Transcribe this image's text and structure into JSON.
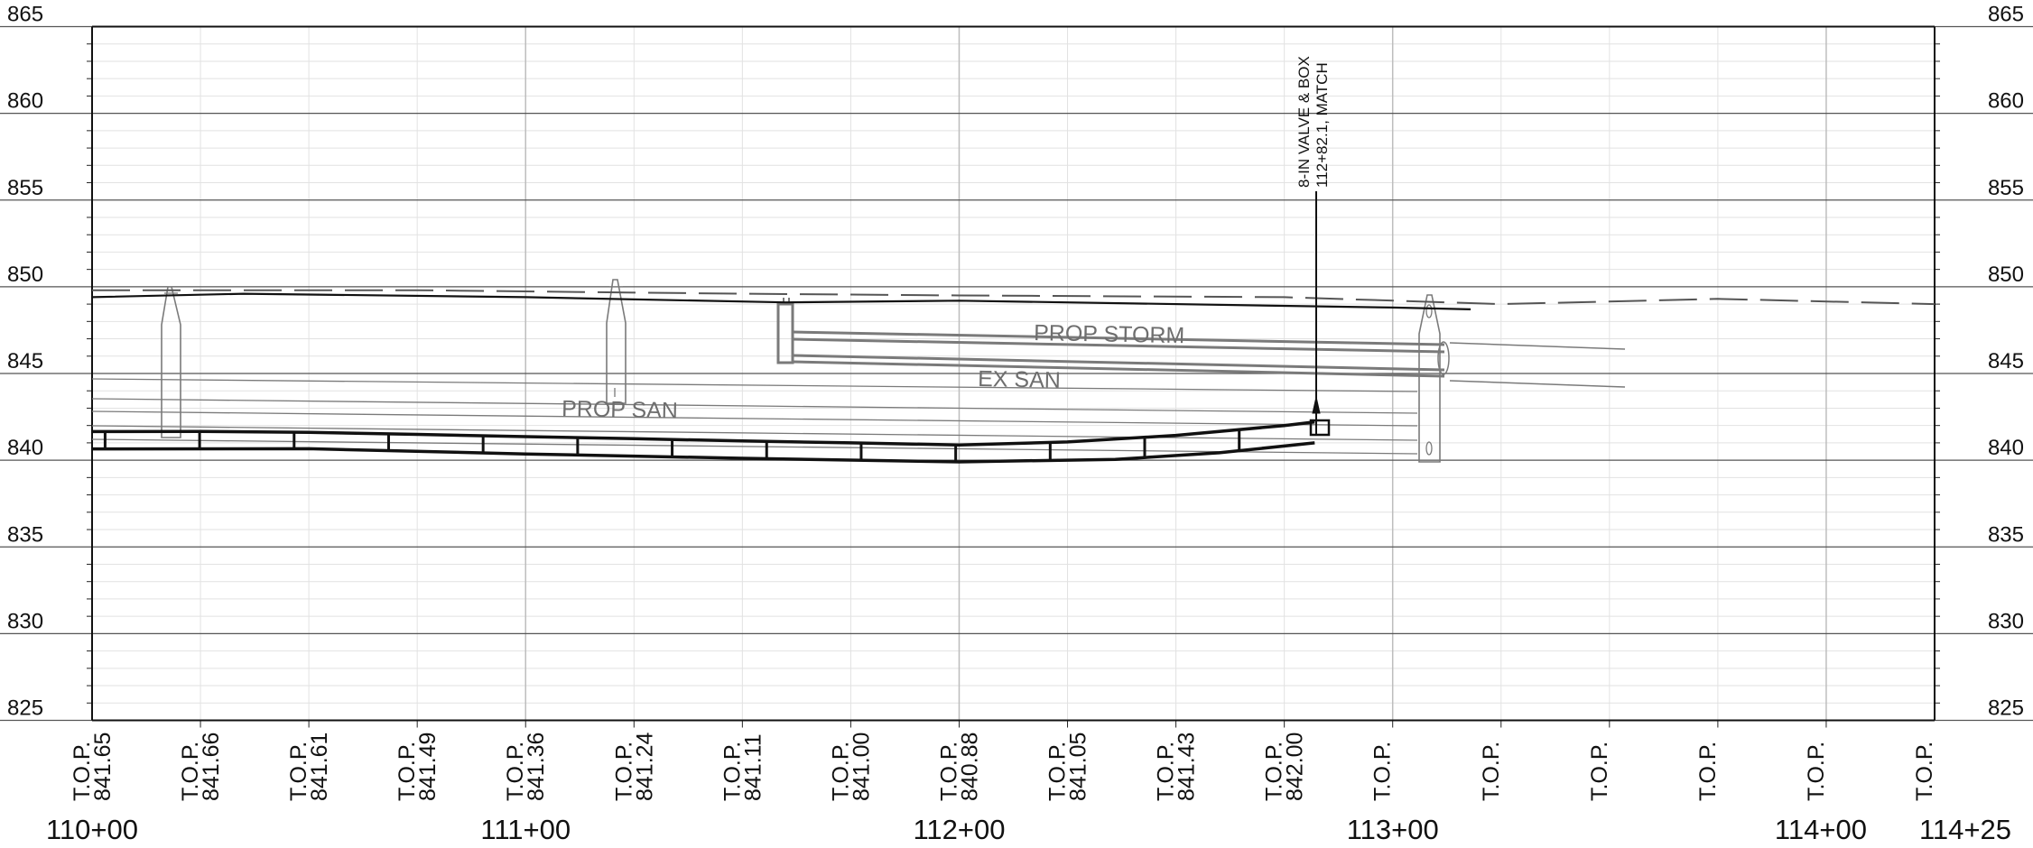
{
  "profile": {
    "elevation_axis": {
      "min": 825,
      "max": 865,
      "major_step": 5,
      "minor_step": 1,
      "labels": [
        "865",
        "860",
        "855",
        "850",
        "845",
        "840",
        "835",
        "830",
        "825"
      ]
    },
    "station_axis": {
      "min_ft": 11000,
      "max_ft": 11425,
      "labels": [
        {
          "ft": 11000,
          "text": "110+00"
        },
        {
          "ft": 11100,
          "text": "111+00"
        },
        {
          "ft": 11200,
          "text": "112+00"
        },
        {
          "ft": 11300,
          "text": "113+00"
        },
        {
          "ft": 11400,
          "text": "114+00"
        },
        {
          "ft": 11425,
          "text": "114+25"
        }
      ]
    },
    "top_of_pipe": {
      "prefix": "T.O.P.",
      "entries": [
        {
          "ft": 11000,
          "value": "841.65"
        },
        {
          "ft": 11025,
          "value": "841.66"
        },
        {
          "ft": 11050,
          "value": "841.61"
        },
        {
          "ft": 11075,
          "value": "841.49"
        },
        {
          "ft": 11100,
          "value": "841.36"
        },
        {
          "ft": 11125,
          "value": "841.24"
        },
        {
          "ft": 11150,
          "value": "841.11"
        },
        {
          "ft": 11175,
          "value": "841.00"
        },
        {
          "ft": 11200,
          "value": "840.88"
        },
        {
          "ft": 11225,
          "value": "841.05"
        },
        {
          "ft": 11250,
          "value": "841.43"
        },
        {
          "ft": 11275,
          "value": "842.00"
        },
        {
          "ft": 11300,
          "value": ""
        },
        {
          "ft": 11325,
          "value": ""
        },
        {
          "ft": 11350,
          "value": ""
        },
        {
          "ft": 11375,
          "value": ""
        },
        {
          "ft": 11400,
          "value": ""
        },
        {
          "ft": 11425,
          "value": ""
        }
      ]
    },
    "utility_labels": {
      "prop_storm": "PROP STORM",
      "ex_san": "EX SAN",
      "prop_san": "PROP SAN"
    },
    "callout": {
      "line1": "8-IN VALVE & BOX",
      "line2": "112+82.1, MATCH",
      "station_ft": 11282.1
    },
    "existing_grade": [
      [
        11000,
        849.8
      ],
      [
        11075,
        849.8
      ],
      [
        11150,
        849.6
      ],
      [
        11200,
        849.5
      ],
      [
        11275,
        849.4
      ],
      [
        11325,
        849.0
      ],
      [
        11375,
        849.3
      ],
      [
        11425,
        849.0
      ]
    ],
    "proposed_grade": [
      [
        11000,
        849.4
      ],
      [
        11035,
        849.6
      ],
      [
        11100,
        849.4
      ],
      [
        11160,
        849.1
      ],
      [
        11200,
        849.2
      ],
      [
        11300,
        848.8
      ],
      [
        11318,
        848.7
      ]
    ],
    "water_main_top": [
      [
        11000,
        841.65
      ],
      [
        11025,
        841.66
      ],
      [
        11050,
        841.61
      ],
      [
        11075,
        841.49
      ],
      [
        11100,
        841.36
      ],
      [
        11125,
        841.24
      ],
      [
        11150,
        841.11
      ],
      [
        11175,
        841.0
      ],
      [
        11200,
        840.88
      ],
      [
        11225,
        841.05
      ],
      [
        11250,
        841.43
      ],
      [
        11275,
        842.0
      ],
      [
        11282,
        842.2
      ]
    ],
    "water_main_bottom": [
      [
        11000,
        840.65
      ],
      [
        11050,
        840.66
      ],
      [
        11100,
        840.36
      ],
      [
        11150,
        840.11
      ],
      [
        11200,
        839.9
      ],
      [
        11236,
        840.05
      ],
      [
        11260,
        840.43
      ],
      [
        11282,
        841.0
      ]
    ],
    "colors": {
      "grade": "#111111",
      "water_main": "#111111",
      "utility": "#7a7a7a",
      "grid_minor": "#e2e2e2",
      "grid_major": "#bdbdbd"
    }
  }
}
